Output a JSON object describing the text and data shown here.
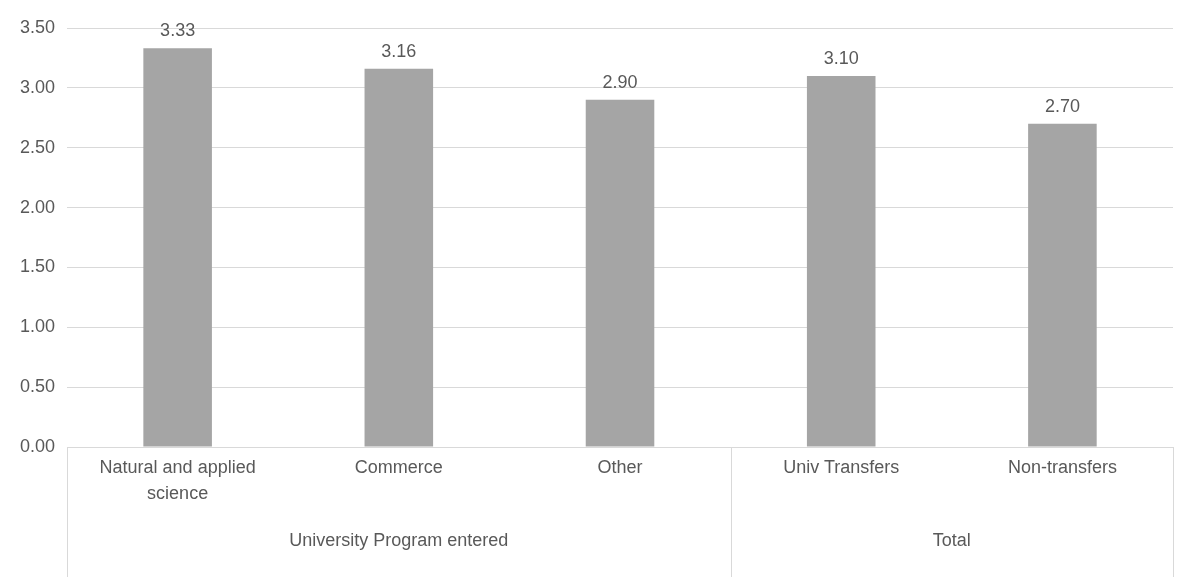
{
  "chart_data": {
    "type": "bar",
    "categories": [
      "Natural and applied science",
      "Commerce",
      "Other",
      "Univ Transfers",
      "Non-transfers"
    ],
    "values": [
      3.33,
      3.16,
      2.9,
      3.1,
      2.7
    ],
    "value_labels": [
      "3.33",
      "3.16",
      "2.90",
      "3.10",
      "2.70"
    ],
    "color": "#a5a5a5",
    "ylim": [
      0,
      3.5
    ],
    "yticks": [
      {
        "value": 0,
        "label": "0.00"
      },
      {
        "value": 0.5,
        "label": "0.50"
      },
      {
        "value": 1,
        "label": "1.00"
      },
      {
        "value": 1.5,
        "label": "1.50"
      },
      {
        "value": 2,
        "label": "2.00"
      },
      {
        "value": 2.5,
        "label": "2.50"
      },
      {
        "value": 3,
        "label": "3.00"
      },
      {
        "value": 3.5,
        "label": "3.50"
      }
    ],
    "grid": "y",
    "annotations": [
      "University Program entered",
      "Total"
    ]
  }
}
